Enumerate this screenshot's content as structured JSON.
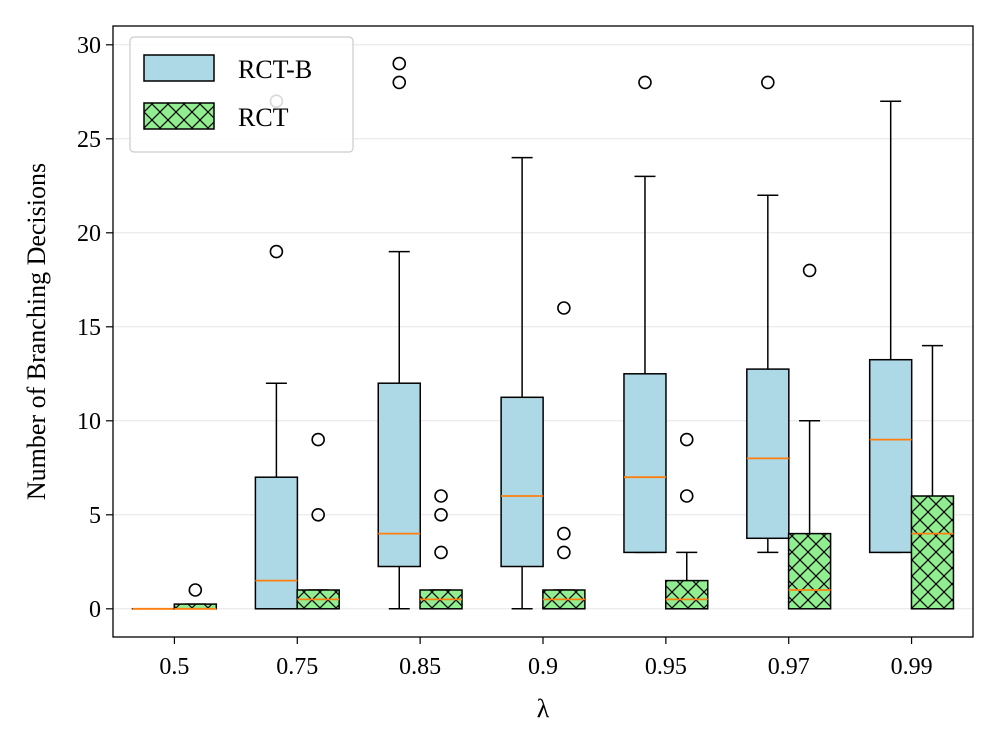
{
  "chart_data": {
    "type": "box",
    "xlabel": "λ",
    "ylabel": "Number of Branching Decisions",
    "categories": [
      "0.5",
      "0.75",
      "0.85",
      "0.9",
      "0.95",
      "0.97",
      "0.99"
    ],
    "ylim": [
      -1.5,
      31
    ],
    "yticks": [
      0,
      5,
      10,
      15,
      20,
      25,
      30
    ],
    "grid": "horizontal",
    "legend_position": "top-left",
    "series": [
      {
        "name": "RCT-B",
        "fill_color": "#add8e6",
        "hatch": "none",
        "boxes": [
          {
            "whislo": 0,
            "q1": 0,
            "med": 0,
            "q3": 0,
            "whishi": 0,
            "fliers": []
          },
          {
            "whislo": 0,
            "q1": 0,
            "med": 1.5,
            "q3": 7,
            "whishi": 12,
            "fliers": [
              19,
              27
            ]
          },
          {
            "whislo": 0,
            "q1": 2.25,
            "med": 4,
            "q3": 12,
            "whishi": 19,
            "fliers": [
              28,
              29
            ]
          },
          {
            "whislo": 0,
            "q1": 2.25,
            "med": 6,
            "q3": 11.25,
            "whishi": 24,
            "fliers": []
          },
          {
            "whislo": 3,
            "q1": 3,
            "med": 7,
            "q3": 12.5,
            "whishi": 23,
            "fliers": [
              28
            ]
          },
          {
            "whislo": 3,
            "q1": 3.75,
            "med": 8,
            "q3": 12.75,
            "whishi": 22,
            "fliers": [
              28
            ]
          },
          {
            "whislo": 3,
            "q1": 3,
            "med": 9,
            "q3": 13.25,
            "whishi": 27,
            "fliers": []
          }
        ]
      },
      {
        "name": "RCT",
        "fill_color": "#90ee90",
        "hatch": "cross",
        "boxes": [
          {
            "whislo": 0,
            "q1": 0,
            "med": 0,
            "q3": 0.25,
            "whishi": 0.25,
            "fliers": [
              1
            ]
          },
          {
            "whislo": 0,
            "q1": 0,
            "med": 0.5,
            "q3": 1,
            "whishi": 1,
            "fliers": [
              5,
              9
            ]
          },
          {
            "whislo": 0,
            "q1": 0,
            "med": 0.5,
            "q3": 1,
            "whishi": 1,
            "fliers": [
              3,
              5,
              6
            ]
          },
          {
            "whislo": 0,
            "q1": 0,
            "med": 0.5,
            "q3": 1,
            "whishi": 1,
            "fliers": [
              3,
              4,
              16
            ]
          },
          {
            "whislo": 0,
            "q1": 0,
            "med": 0.5,
            "q3": 1.5,
            "whishi": 3,
            "fliers": [
              6,
              9
            ]
          },
          {
            "whislo": 0,
            "q1": 0,
            "med": 1,
            "q3": 4,
            "whishi": 10,
            "fliers": [
              18
            ]
          },
          {
            "whislo": 0,
            "q1": 0,
            "med": 4,
            "q3": 6,
            "whishi": 14,
            "fliers": []
          }
        ]
      }
    ],
    "median_color": "#ff7f0e"
  }
}
